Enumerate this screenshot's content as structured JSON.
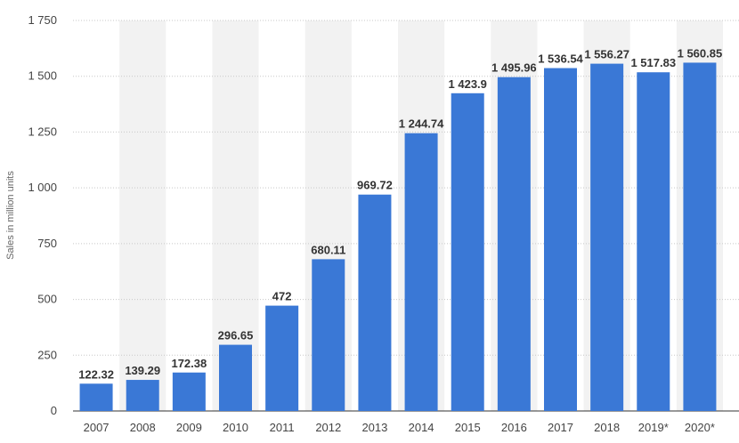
{
  "chart_data": {
    "type": "bar",
    "ylabel": "Sales in million units",
    "ylim": [
      0,
      1750
    ],
    "yticks": [
      0,
      250,
      500,
      750,
      1000,
      1250,
      1500,
      1750
    ],
    "ytick_labels": [
      "0",
      "250",
      "500",
      "750",
      "1 000",
      "1 250",
      "1 500",
      "1 750"
    ],
    "categories": [
      "2007",
      "2008",
      "2009",
      "2010",
      "2011",
      "2012",
      "2013",
      "2014",
      "2015",
      "2016",
      "2017",
      "2018",
      "2019*",
      "2020*"
    ],
    "values": [
      122.32,
      139.29,
      172.38,
      296.65,
      472,
      680.11,
      969.72,
      1244.74,
      1423.9,
      1495.96,
      1536.54,
      1556.27,
      1517.83,
      1560.85
    ],
    "value_labels": [
      "122.32",
      "139.29",
      "172.38",
      "296.65",
      "472",
      "680.11",
      "969.72",
      "1 244.74",
      "1 423.9",
      "1 495.96",
      "1 536.54",
      "1 556.27",
      "1 517.83",
      "1 560.85"
    ],
    "grid": true,
    "legend": "none",
    "colors": {
      "bar": "#3a78d6",
      "band": "#f2f2f2"
    }
  }
}
